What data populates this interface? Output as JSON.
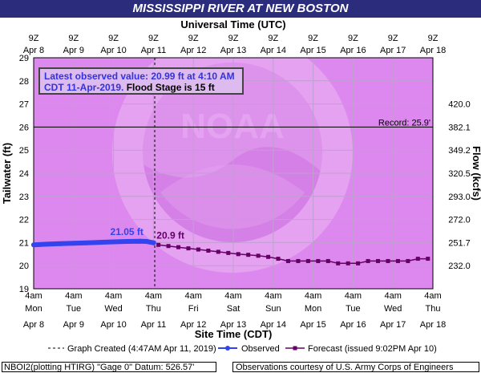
{
  "header": {
    "title": "MISSISSIPPI RIVER AT NEW BOSTON"
  },
  "colors": {
    "plot_bg": "#dd88ee",
    "title_bg": "#2c2c7c",
    "observed": "#3344ee",
    "forecast": "#660066",
    "highlight_text": "#3333dd",
    "stage_label": "#660066"
  },
  "annotation": {
    "latest_line1": "Latest observed value: 20.99 ft at 4:10 AM",
    "latest_line2": "CDT 11-Apr-2019.",
    "flood_stage": "Flood Stage is 15 ft"
  },
  "footer": {
    "left": "NBOI2(plotting HTIRG) \"Gage 0\" Datum:  526.57'",
    "right": "Observations courtesy of U.S. Army Corps of Engineers"
  },
  "chart_data": {
    "type": "line",
    "title": "MISSISSIPPI RIVER AT NEW BOSTON",
    "top_axis_title": "Universal Time (UTC)",
    "top_tick_labels": [
      [
        "9Z",
        "Apr 8"
      ],
      [
        "9Z",
        "Apr 9"
      ],
      [
        "9Z",
        "Apr 10"
      ],
      [
        "9Z",
        "Apr 11"
      ],
      [
        "9Z",
        "Apr 12"
      ],
      [
        "9Z",
        "Apr 13"
      ],
      [
        "9Z",
        "Apr 14"
      ],
      [
        "9Z",
        "Apr 15"
      ],
      [
        "9Z",
        "Apr 16"
      ],
      [
        "9Z",
        "Apr 17"
      ],
      [
        "9Z",
        "Apr 18"
      ]
    ],
    "xlabel": "Site Time (CDT)",
    "bottom_tick_labels": [
      [
        "4am",
        "Mon",
        "Apr 8"
      ],
      [
        "4am",
        "Tue",
        "Apr 9"
      ],
      [
        "4am",
        "Wed",
        "Apr 10"
      ],
      [
        "4am",
        "Thu",
        "Apr 11"
      ],
      [
        "4am",
        "Fri",
        "Apr 12"
      ],
      [
        "4am",
        "Sat",
        "Apr 13"
      ],
      [
        "4am",
        "Sun",
        "Apr 14"
      ],
      [
        "4am",
        "Mon",
        "Apr 15"
      ],
      [
        "4am",
        "Tue",
        "Apr 16"
      ],
      [
        "4am",
        "Wed",
        "Apr 17"
      ],
      [
        "4am",
        "Thu",
        "Apr 18"
      ]
    ],
    "x_range": [
      "2019-04-08 04:00",
      "2019-04-18 04:00"
    ],
    "ylabel": "Tailwater (ft)",
    "ylim": [
      19,
      29
    ],
    "yticks": [
      19,
      20,
      21,
      22,
      23,
      24,
      25,
      26,
      27,
      28,
      29
    ],
    "y2label": "Flow (kcfs)",
    "y2_ticks": [
      {
        "stage": 20,
        "label": "232.0"
      },
      {
        "stage": 21,
        "label": "251.7"
      },
      {
        "stage": 22,
        "label": "272.0"
      },
      {
        "stage": 23,
        "label": "293.0"
      },
      {
        "stage": 24,
        "label": "320.5"
      },
      {
        "stage": 25,
        "label": "349.2"
      },
      {
        "stage": 26,
        "label": "382.1"
      },
      {
        "stage": 27,
        "label": "420.0"
      },
      {
        "stage": 28,
        "label": ""
      },
      {
        "stage": 29,
        "label": ""
      }
    ],
    "record": {
      "stage": 25.9,
      "line_stage": 26,
      "label": "Record: 25.9'"
    },
    "graph_created": "2019-04-11 04:47",
    "series": [
      {
        "name": "Observed",
        "kind": "observed",
        "points": [
          [
            "2019-04-08 04:00",
            20.9
          ],
          [
            "2019-04-08 12:00",
            20.93
          ],
          [
            "2019-04-08 20:00",
            20.95
          ],
          [
            "2019-04-09 04:00",
            20.97
          ],
          [
            "2019-04-09 12:00",
            20.99
          ],
          [
            "2019-04-09 20:00",
            21.01
          ],
          [
            "2019-04-10 04:00",
            21.03
          ],
          [
            "2019-04-10 12:00",
            21.05
          ],
          [
            "2019-04-10 20:00",
            21.06
          ],
          [
            "2019-04-11 00:00",
            21.05
          ],
          [
            "2019-04-11 04:10",
            20.99
          ]
        ]
      },
      {
        "name": "Forecast",
        "kind": "forecast",
        "points": [
          [
            "2019-04-11 07:00",
            20.9
          ],
          [
            "2019-04-11 13:00",
            20.85
          ],
          [
            "2019-04-11 19:00",
            20.8
          ],
          [
            "2019-04-12 01:00",
            20.75
          ],
          [
            "2019-04-12 07:00",
            20.7
          ],
          [
            "2019-04-12 13:00",
            20.65
          ],
          [
            "2019-04-12 19:00",
            20.6
          ],
          [
            "2019-04-13 01:00",
            20.55
          ],
          [
            "2019-04-13 07:00",
            20.5
          ],
          [
            "2019-04-13 13:00",
            20.47
          ],
          [
            "2019-04-13 19:00",
            20.43
          ],
          [
            "2019-04-14 01:00",
            20.38
          ],
          [
            "2019-04-14 07:00",
            20.3
          ],
          [
            "2019-04-14 13:00",
            20.2
          ],
          [
            "2019-04-14 19:00",
            20.2
          ],
          [
            "2019-04-15 01:00",
            20.2
          ],
          [
            "2019-04-15 07:00",
            20.2
          ],
          [
            "2019-04-15 13:00",
            20.2
          ],
          [
            "2019-04-15 19:00",
            20.1
          ],
          [
            "2019-04-16 01:00",
            20.1
          ],
          [
            "2019-04-16 07:00",
            20.1
          ],
          [
            "2019-04-16 13:00",
            20.2
          ],
          [
            "2019-04-16 19:00",
            20.2
          ],
          [
            "2019-04-17 01:00",
            20.2
          ],
          [
            "2019-04-17 07:00",
            20.2
          ],
          [
            "2019-04-17 13:00",
            20.2
          ],
          [
            "2019-04-17 19:00",
            20.3
          ],
          [
            "2019-04-18 01:00",
            20.3
          ]
        ]
      }
    ],
    "annotations": [
      {
        "text": "21.05 ft",
        "series": "Observed",
        "at": [
          "2019-04-10 12:00",
          21.05
        ]
      },
      {
        "text": "20.9 ft",
        "series": "Forecast",
        "at": [
          "2019-04-11 07:00",
          20.9
        ]
      }
    ],
    "legend": [
      {
        "label": "Graph Created (4:47AM Apr 11, 2019)",
        "kind": "dashed"
      },
      {
        "label": "Observed",
        "kind": "observed"
      },
      {
        "label": "Forecast (issued 9:02PM Apr 10)",
        "kind": "forecast"
      }
    ],
    "legend_position": "bottom"
  }
}
